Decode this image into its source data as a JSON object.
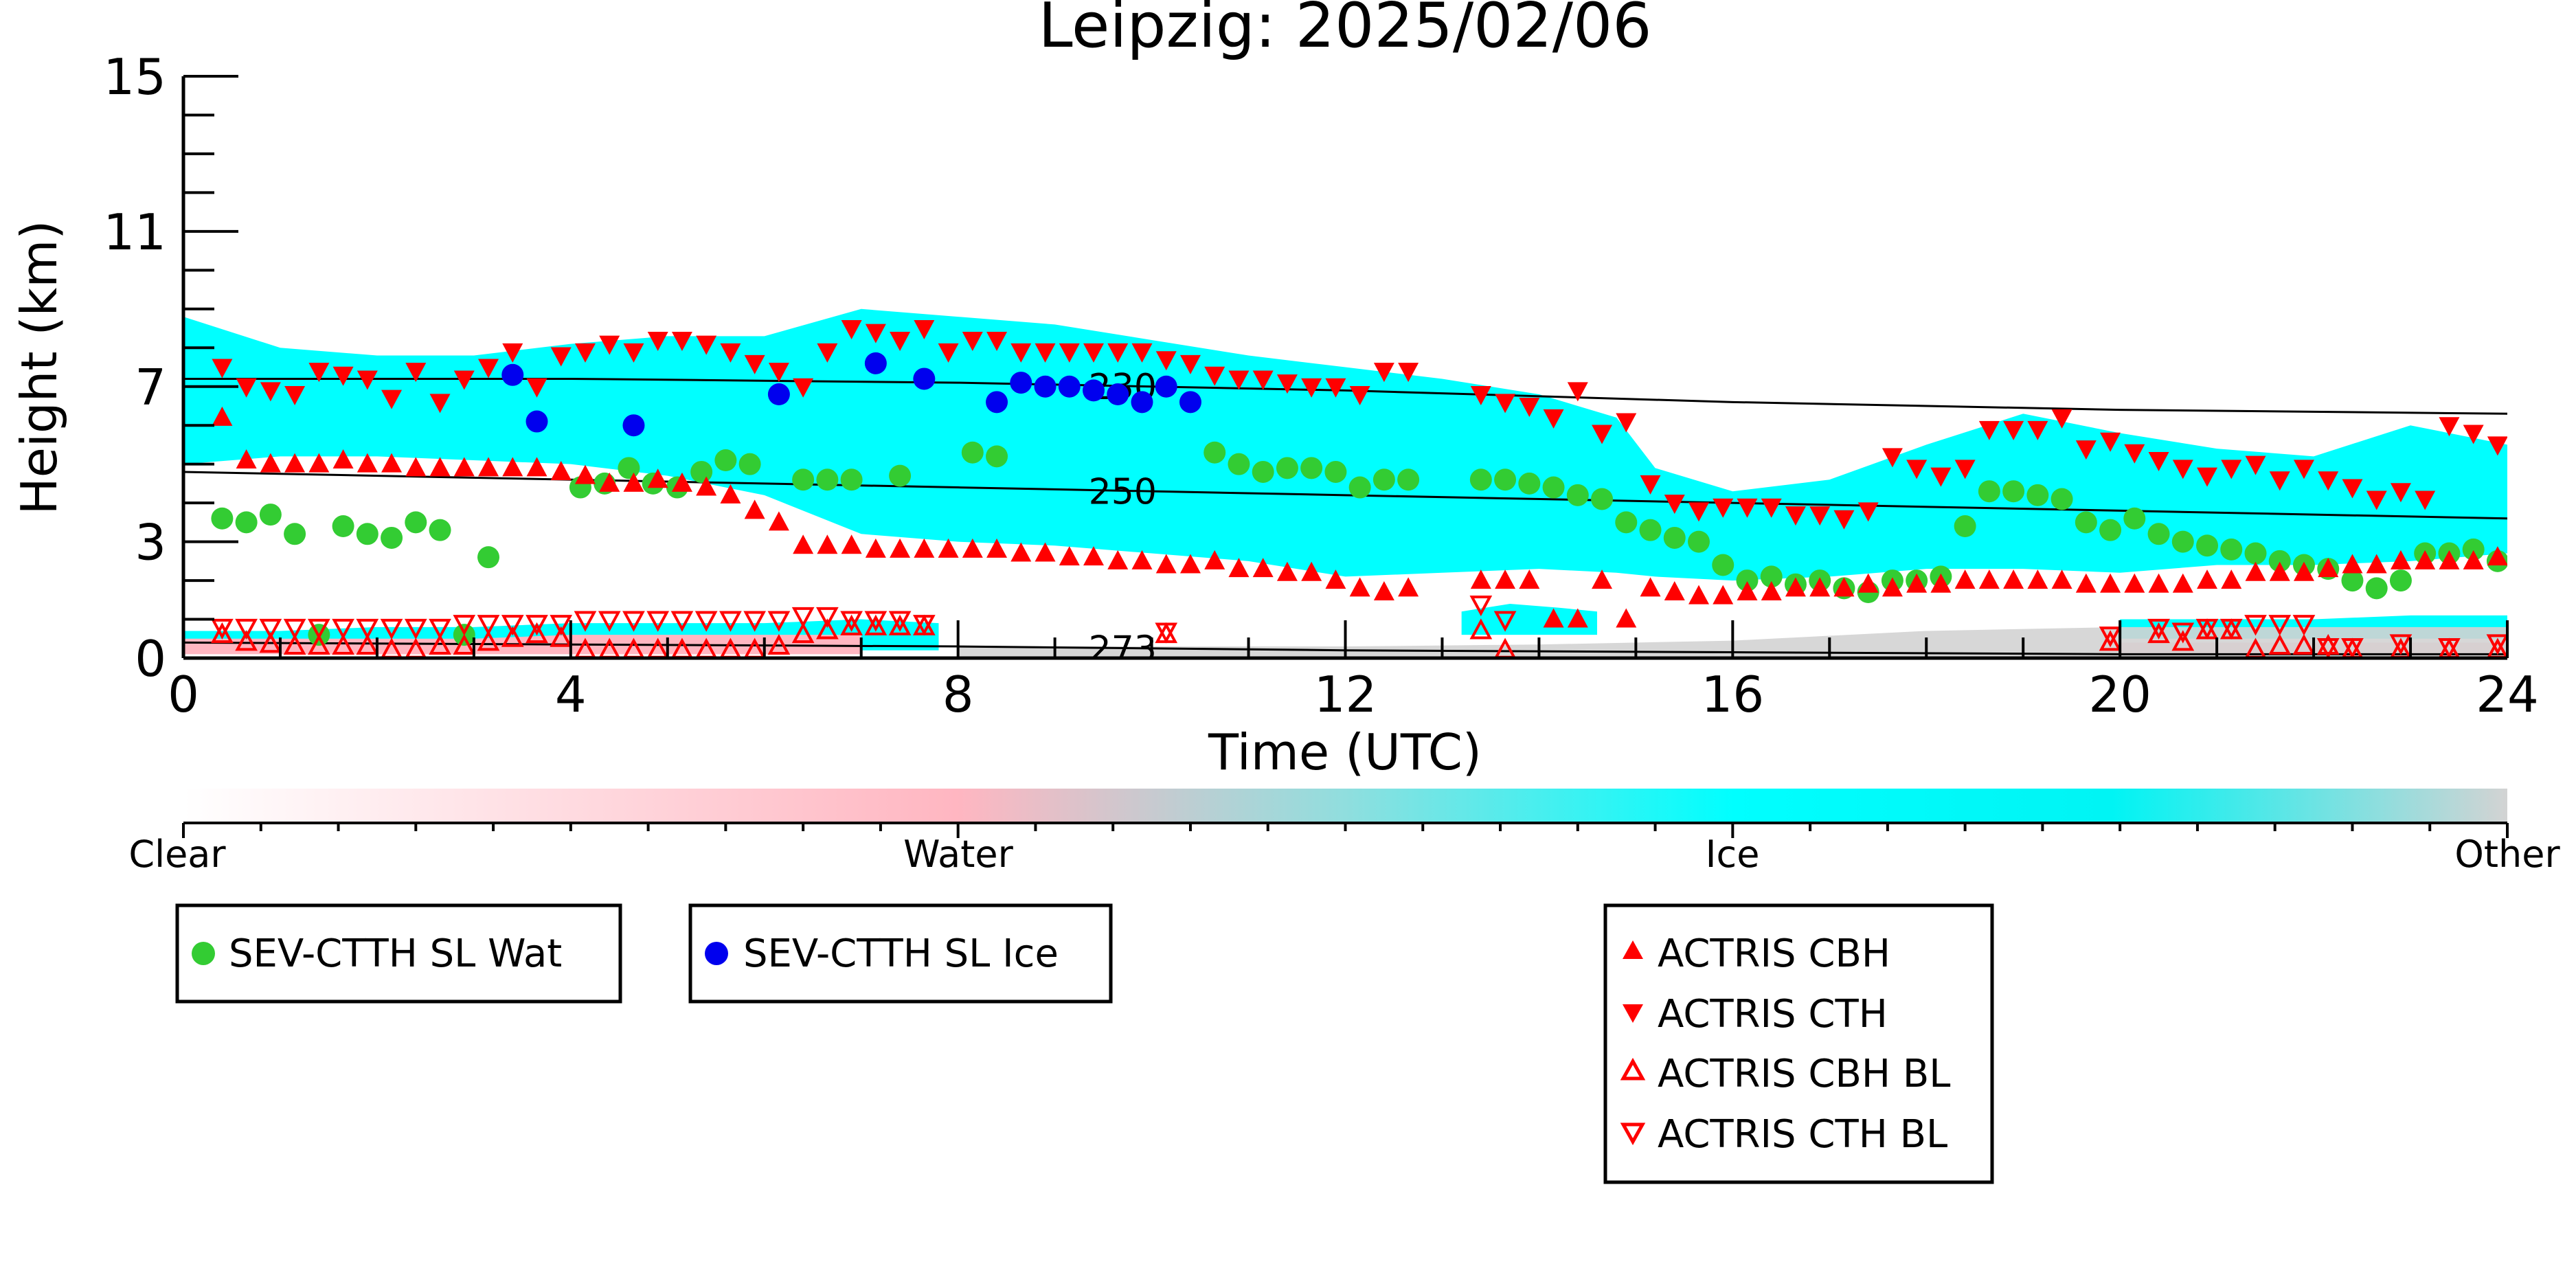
{
  "chart_data": {
    "type": "scatter",
    "title": "Leipzig: 2025/02/06",
    "xlabel": "Time (UTC)",
    "ylabel": "Height (km)",
    "xlim": [
      0,
      24
    ],
    "ylim": [
      0,
      15
    ],
    "x_ticks": [
      "0",
      "4",
      "8",
      "12",
      "16",
      "20",
      "24"
    ],
    "y_ticks": [
      "0",
      "3",
      "7",
      "11",
      "15"
    ],
    "colors": {
      "ice": "#00ffff",
      "water": "#ffb6c1",
      "other": "#d3d3d3",
      "sev_wat": "#33cc33",
      "sev_ice": "#0000ee",
      "actris": "#ff0000"
    },
    "colorbar": {
      "labels": [
        "Clear",
        "Water",
        "Ice",
        "Other"
      ]
    },
    "isotherms": [
      {
        "label": "230",
        "x": [
          0,
          4,
          8,
          12,
          16,
          20,
          24
        ],
        "y": [
          7.2,
          7.2,
          7.1,
          6.9,
          6.6,
          6.4,
          6.3
        ]
      },
      {
        "label": "250",
        "x": [
          0,
          4,
          8,
          12,
          16,
          20,
          24
        ],
        "y": [
          4.8,
          4.6,
          4.4,
          4.2,
          4.0,
          3.8,
          3.6
        ]
      },
      {
        "label": "273",
        "x": [
          0,
          4,
          8,
          12,
          16,
          20,
          24
        ],
        "y": [
          0.4,
          0.35,
          0.3,
          0.2,
          0.15,
          0.1,
          0.1
        ]
      }
    ],
    "cloud_layers": [
      {
        "type": "ice",
        "x": [
          0,
          1,
          2,
          3,
          4,
          5,
          6,
          7,
          8,
          9,
          10,
          11,
          12,
          13,
          14,
          14.8,
          15.2,
          16,
          17,
          18,
          19,
          20,
          21,
          22,
          23,
          24
        ],
        "top": [
          8.8,
          8.0,
          7.8,
          7.8,
          8.1,
          8.3,
          8.3,
          9.0,
          8.8,
          8.6,
          8.2,
          7.8,
          7.5,
          7.2,
          6.8,
          6.2,
          4.9,
          4.3,
          4.6,
          5.5,
          6.3,
          5.8,
          5.4,
          5.2,
          6.0,
          5.5
        ],
        "base": [
          5.0,
          5.2,
          5.2,
          5.1,
          5.0,
          4.7,
          4.2,
          3.2,
          3.0,
          2.9,
          2.7,
          2.5,
          2.1,
          2.2,
          2.3,
          2.2,
          2.1,
          2.0,
          2.1,
          2.3,
          2.3,
          2.2,
          2.4,
          2.4,
          2.5,
          2.7
        ]
      },
      {
        "type": "ice",
        "x": [
          0,
          1,
          2,
          3,
          4,
          5,
          6,
          7,
          7.8
        ],
        "top": [
          0.7,
          0.7,
          0.8,
          0.8,
          0.9,
          0.9,
          0.9,
          1.0,
          0.9
        ],
        "base": [
          0.2,
          0.2,
          0.2,
          0.2,
          0.2,
          0.2,
          0.2,
          0.2,
          0.2
        ]
      },
      {
        "type": "ice",
        "x": [
          13.2,
          13.7,
          14.2,
          14.6
        ],
        "top": [
          1.2,
          1.4,
          1.3,
          1.2
        ],
        "base": [
          0.6,
          0.6,
          0.6,
          0.6
        ]
      },
      {
        "type": "ice",
        "x": [
          20,
          21,
          22,
          23,
          24
        ],
        "top": [
          1.0,
          1.0,
          1.0,
          1.1,
          1.1
        ],
        "base": [
          0.5,
          0.5,
          0.5,
          0.5,
          0.5
        ]
      },
      {
        "type": "water",
        "x": [
          0,
          1,
          2,
          3,
          4,
          5,
          6,
          7
        ],
        "top": [
          0.5,
          0.5,
          0.5,
          0.5,
          0.6,
          0.6,
          0.6,
          0.6
        ],
        "base": [
          0.1,
          0.1,
          0.1,
          0.1,
          0.1,
          0.1,
          0.1,
          0.1
        ]
      },
      {
        "type": "water",
        "x": [
          20,
          21,
          22,
          23,
          24
        ],
        "top": [
          0.4,
          0.4,
          0.4,
          0.4,
          0.4
        ],
        "base": [
          0.1,
          0.1,
          0.1,
          0.1,
          0.1
        ]
      },
      {
        "type": "other",
        "x": [
          8,
          10,
          12,
          14,
          16,
          18,
          20,
          22,
          24
        ],
        "top": [
          0.3,
          0.3,
          0.3,
          0.35,
          0.45,
          0.7,
          0.8,
          0.8,
          0.8
        ],
        "base": [
          0,
          0,
          0,
          0,
          0,
          0,
          0,
          0,
          0
        ]
      }
    ],
    "series": [
      {
        "name": "SEV-CTTH SL Wat",
        "marker": "circle",
        "x": [
          0.4,
          0.65,
          0.9,
          1.15,
          1.4,
          1.65,
          1.9,
          2.15,
          2.4,
          2.65,
          2.9,
          3.15,
          4.1,
          4.35,
          4.6,
          4.85,
          5.1,
          5.35,
          5.6,
          5.85,
          6.4,
          6.65,
          6.9,
          7.4,
          8.15,
          8.4,
          10.65,
          10.9,
          11.15,
          11.4,
          11.65,
          11.9,
          12.15,
          12.4,
          12.65,
          13.4,
          13.65,
          13.9,
          14.15,
          14.4,
          14.65,
          14.9,
          15.15,
          15.4,
          15.65,
          15.9,
          16.15,
          16.4,
          16.65,
          16.9,
          17.15,
          17.4,
          17.65,
          17.9,
          18.15,
          18.4,
          18.65,
          18.9,
          19.15,
          19.4,
          19.65,
          19.9,
          20.15,
          20.4,
          20.65,
          20.9,
          21.15,
          21.4,
          21.65,
          21.9,
          22.15,
          22.4,
          22.65,
          22.9,
          23.15,
          23.4,
          23.65,
          23.9
        ],
        "y": [
          3.6,
          3.5,
          3.7,
          3.2,
          0.6,
          3.4,
          3.2,
          3.1,
          3.5,
          3.3,
          0.6,
          2.6,
          4.4,
          4.5,
          4.9,
          4.5,
          4.4,
          4.8,
          5.1,
          5.0,
          4.6,
          4.6,
          4.6,
          4.7,
          5.3,
          5.2,
          5.3,
          5.0,
          4.8,
          4.9,
          4.9,
          4.8,
          4.4,
          4.6,
          4.6,
          4.6,
          4.6,
          4.5,
          4.4,
          4.2,
          4.1,
          3.5,
          3.3,
          3.1,
          3.0,
          2.4,
          2.0,
          2.1,
          1.9,
          2.0,
          1.8,
          1.7,
          2.0,
          2.0,
          2.1,
          3.4,
          4.3,
          4.3,
          4.2,
          4.1,
          3.5,
          3.3,
          3.6,
          3.2,
          3.0,
          2.9,
          2.8,
          2.7,
          2.5,
          2.4,
          2.3,
          2.0,
          1.8,
          2.0,
          2.7,
          2.7,
          2.8,
          2.5
        ]
      },
      {
        "name": "SEV-CTTH SL Ice",
        "marker": "circle",
        "x": [
          3.4,
          3.65,
          4.65,
          6.15,
          7.15,
          7.65,
          8.4,
          8.65,
          8.9,
          9.15,
          9.4,
          9.65,
          9.9,
          10.15,
          10.4
        ],
        "y": [
          7.3,
          6.1,
          6.0,
          6.8,
          7.6,
          7.2,
          6.6,
          7.1,
          7.0,
          7.0,
          6.9,
          6.8,
          6.6,
          7.0,
          6.6
        ]
      },
      {
        "name": "ACTRIS CBH",
        "marker": "triangle-up",
        "x": [
          0.4,
          0.65,
          0.9,
          1.15,
          1.4,
          1.65,
          1.9,
          2.15,
          2.4,
          2.65,
          2.9,
          3.15,
          3.4,
          3.65,
          3.9,
          4.15,
          4.4,
          4.65,
          4.9,
          5.15,
          5.4,
          5.65,
          5.9,
          6.15,
          6.4,
          6.65,
          6.9,
          7.15,
          7.4,
          7.65,
          7.9,
          8.15,
          8.4,
          8.65,
          8.9,
          9.15,
          9.4,
          9.65,
          9.9,
          10.15,
          10.4,
          10.65,
          10.9,
          11.15,
          11.4,
          11.65,
          11.9,
          12.15,
          12.4,
          12.65,
          13.4,
          13.65,
          13.9,
          14.15,
          14.4,
          14.65,
          14.9,
          15.15,
          15.4,
          15.65,
          15.9,
          16.15,
          16.4,
          16.65,
          16.9,
          17.15,
          17.4,
          17.65,
          17.9,
          18.15,
          18.4,
          18.65,
          18.9,
          19.15,
          19.4,
          19.65,
          19.9,
          20.15,
          20.4,
          20.65,
          20.9,
          21.15,
          21.4,
          21.65,
          21.9,
          22.15,
          22.4,
          22.65,
          22.9,
          23.15,
          23.4,
          23.65,
          23.9
        ],
        "y": [
          6.2,
          5.1,
          5.0,
          5.0,
          5.0,
          5.1,
          5.0,
          5.0,
          4.9,
          4.9,
          4.9,
          4.9,
          4.9,
          4.9,
          4.8,
          4.7,
          4.5,
          4.5,
          4.6,
          4.5,
          4.4,
          4.2,
          3.8,
          3.5,
          2.9,
          2.9,
          2.9,
          2.8,
          2.8,
          2.8,
          2.8,
          2.8,
          2.8,
          2.7,
          2.7,
          2.6,
          2.6,
          2.5,
          2.5,
          2.4,
          2.4,
          2.5,
          2.3,
          2.3,
          2.2,
          2.2,
          2.0,
          1.8,
          1.7,
          1.8,
          2.0,
          2.0,
          2.0,
          1.0,
          1.0,
          2.0,
          1.0,
          1.8,
          1.7,
          1.6,
          1.6,
          1.7,
          1.7,
          1.8,
          1.8,
          1.8,
          1.9,
          1.8,
          1.9,
          1.9,
          2.0,
          2.0,
          2.0,
          2.0,
          2.0,
          1.9,
          1.9,
          1.9,
          1.9,
          1.9,
          2.0,
          2.0,
          2.2,
          2.2,
          2.2,
          2.3,
          2.4,
          2.4,
          2.5,
          2.5,
          2.5,
          2.5,
          2.6
        ]
      },
      {
        "name": "ACTRIS CTH",
        "marker": "triangle-down",
        "x": [
          0.4,
          0.65,
          0.9,
          1.15,
          1.4,
          1.65,
          1.9,
          2.15,
          2.4,
          2.65,
          2.9,
          3.15,
          3.4,
          3.65,
          3.9,
          4.15,
          4.4,
          4.65,
          4.9,
          5.15,
          5.4,
          5.65,
          5.9,
          6.15,
          6.4,
          6.65,
          6.9,
          7.15,
          7.4,
          7.65,
          7.9,
          8.15,
          8.4,
          8.65,
          8.9,
          9.15,
          9.4,
          9.65,
          9.9,
          10.15,
          10.4,
          10.65,
          10.9,
          11.15,
          11.4,
          11.65,
          11.9,
          12.15,
          12.4,
          12.65,
          13.4,
          13.65,
          13.9,
          14.15,
          14.4,
          14.65,
          14.9,
          15.15,
          15.4,
          15.65,
          15.9,
          16.15,
          16.4,
          16.65,
          16.9,
          17.15,
          17.4,
          17.65,
          17.9,
          18.15,
          18.4,
          18.65,
          18.9,
          19.15,
          19.4,
          19.65,
          19.9,
          20.15,
          20.4,
          20.65,
          20.9,
          21.15,
          21.4,
          21.65,
          21.9,
          22.15,
          22.4,
          22.65,
          22.9,
          23.15,
          23.4,
          23.65,
          23.9
        ],
        "y": [
          7.5,
          7.0,
          6.9,
          6.8,
          7.4,
          7.3,
          7.2,
          6.7,
          7.4,
          6.6,
          7.2,
          7.5,
          7.9,
          7.0,
          7.8,
          7.9,
          8.1,
          7.9,
          8.2,
          8.2,
          8.1,
          7.9,
          7.6,
          7.4,
          7.0,
          7.9,
          8.5,
          8.4,
          8.2,
          8.5,
          7.9,
          8.2,
          8.2,
          7.9,
          7.9,
          7.9,
          7.9,
          7.9,
          7.9,
          7.7,
          7.6,
          7.3,
          7.2,
          7.2,
          7.1,
          7.0,
          7.0,
          6.8,
          7.4,
          7.4,
          6.8,
          6.6,
          6.5,
          6.2,
          6.9,
          5.8,
          6.1,
          4.5,
          4.0,
          3.8,
          3.9,
          3.9,
          3.9,
          3.7,
          3.7,
          3.6,
          3.8,
          5.2,
          4.9,
          4.7,
          4.9,
          5.9,
          5.9,
          5.9,
          6.2,
          5.4,
          5.6,
          5.3,
          5.1,
          4.9,
          4.7,
          4.9,
          5.0,
          4.6,
          4.9,
          4.6,
          4.4,
          4.1,
          4.3,
          4.1,
          6.0,
          5.8,
          5.5
        ]
      },
      {
        "name": "ACTRIS CBH BL",
        "marker": "triangle-up-open",
        "x": [
          0.4,
          0.65,
          0.9,
          1.15,
          1.4,
          1.65,
          1.9,
          2.15,
          2.4,
          2.65,
          2.9,
          3.15,
          3.4,
          3.65,
          3.9,
          4.15,
          4.4,
          4.65,
          4.9,
          5.15,
          5.4,
          5.65,
          5.9,
          6.15,
          6.4,
          6.65,
          6.9,
          7.15,
          7.4,
          7.65,
          10.15,
          13.4,
          13.65,
          19.9,
          20.4,
          20.65,
          20.9,
          21.15,
          21.4,
          21.65,
          21.9,
          22.15,
          22.4,
          22.9,
          23.4,
          23.9
        ],
        "y": [
          0.6,
          0.4,
          0.35,
          0.3,
          0.3,
          0.3,
          0.3,
          0.2,
          0.2,
          0.3,
          0.3,
          0.4,
          0.5,
          0.6,
          0.5,
          0.2,
          0.2,
          0.2,
          0.2,
          0.2,
          0.2,
          0.2,
          0.2,
          0.3,
          0.6,
          0.7,
          0.8,
          0.8,
          0.8,
          0.8,
          0.6,
          0.7,
          0.2,
          0.4,
          0.6,
          0.4,
          0.7,
          0.7,
          0.2,
          0.3,
          0.3,
          0.3,
          0.2,
          0.2,
          0.2,
          0.2
        ]
      },
      {
        "name": "ACTRIS CTH BL",
        "marker": "triangle-down-open",
        "x": [
          0.4,
          0.65,
          0.9,
          1.15,
          1.4,
          1.65,
          1.9,
          2.15,
          2.4,
          2.65,
          2.9,
          3.15,
          3.4,
          3.65,
          3.9,
          4.15,
          4.4,
          4.65,
          4.9,
          5.15,
          5.4,
          5.65,
          5.9,
          6.15,
          6.4,
          6.65,
          6.9,
          7.15,
          7.4,
          7.65,
          10.15,
          13.4,
          13.65,
          19.9,
          20.4,
          20.65,
          20.9,
          21.15,
          21.4,
          21.65,
          21.9,
          22.15,
          22.4,
          22.9,
          23.4,
          23.9
        ],
        "y": [
          0.8,
          0.8,
          0.8,
          0.8,
          0.8,
          0.8,
          0.8,
          0.8,
          0.8,
          0.8,
          0.9,
          0.9,
          0.9,
          0.9,
          0.9,
          1.0,
          1.0,
          1.0,
          1.0,
          1.0,
          1.0,
          1.0,
          1.0,
          1.0,
          1.1,
          1.1,
          1.0,
          1.0,
          1.0,
          0.9,
          0.7,
          1.4,
          1.0,
          0.6,
          0.8,
          0.7,
          0.8,
          0.8,
          0.9,
          0.9,
          0.9,
          0.3,
          0.3,
          0.4,
          0.3,
          0.4
        ]
      }
    ],
    "legend": {
      "boxes": [
        {
          "entries": [
            "SEV-CTTH SL Wat"
          ]
        },
        {
          "entries": [
            "SEV-CTTH SL Ice"
          ]
        },
        {
          "entries": [
            "ACTRIS CBH",
            "ACTRIS CTH",
            "ACTRIS CBH BL",
            "ACTRIS CTH BL"
          ]
        }
      ]
    }
  }
}
